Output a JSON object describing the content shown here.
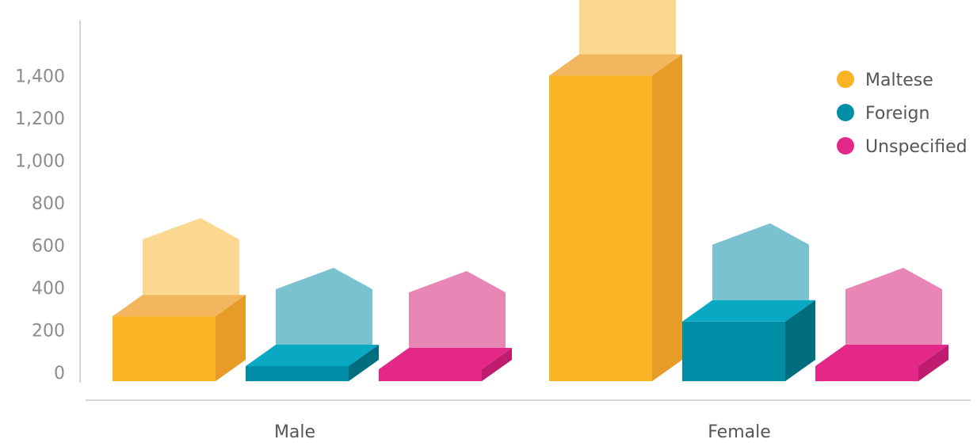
{
  "chart_data": {
    "type": "bar",
    "categories": [
      "Male",
      "Female"
    ],
    "series": [
      {
        "name": "Maltese",
        "values": [
          265,
          1400
        ],
        "color": "#FBB225",
        "side_color": "#E69C26",
        "top_color": "#F2B75E",
        "ghost_color": "#FCD790"
      },
      {
        "name": "Foreign",
        "values": [
          30,
          240
        ],
        "color": "#008DA6",
        "side_color": "#006E7E",
        "top_color": "#0AA9C3",
        "ghost_color": "#7AC2D0"
      },
      {
        "name": "Unspecified",
        "values": [
          15,
          30
        ],
        "color": "#E3288A",
        "side_color": "#BF1C6F",
        "top_color": "#E3288A",
        "ghost_color": "#E887B6"
      }
    ],
    "y_ticks": [
      "0",
      "200",
      "400",
      "600",
      "800",
      "1,000",
      "1,200",
      "1,400"
    ],
    "y_tick_values": [
      0,
      200,
      400,
      600,
      800,
      1000,
      1200,
      1400
    ],
    "ylim": [
      0,
      1400
    ],
    "title": "",
    "xlabel": "",
    "ylabel": "",
    "grid": false,
    "legend_position": "right"
  }
}
